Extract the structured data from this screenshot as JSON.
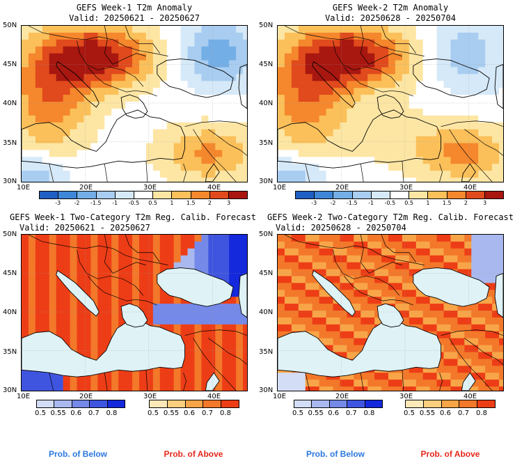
{
  "panels": [
    {
      "title": "GEFS Week-1 T2m Anomaly",
      "valid": "Valid: 20250621 - 20250627"
    },
    {
      "title": "GEFS Week-2 T2m Anomaly",
      "valid": "Valid: 20250628 - 20250704"
    },
    {
      "title": "GEFS Week-1 Two-Category T2m Reg. Calib. Forecast",
      "valid": "Valid: 20250621 - 20250627"
    },
    {
      "title": "GEFS Week-2 Two-Category T2m Reg. Calib. Forecast",
      "valid": "Valid: 20250628 - 20250704"
    }
  ],
  "lat_labels": [
    "50N",
    "45N",
    "40N",
    "35N",
    "30N"
  ],
  "lon_labels": [
    "10E",
    "20E",
    "30E",
    "40E"
  ],
  "anomaly_scale": {
    "ticks": [
      "-3",
      "-2",
      "-1.5",
      "-1",
      "-0.5",
      "0.5",
      "1",
      "1.5",
      "2",
      "3"
    ],
    "colors": [
      "#1f5fc4",
      "#3d86d8",
      "#74aee6",
      "#a8cdf0",
      "#d6e9f8",
      "#ffffff",
      "#fde6a4",
      "#fbc05a",
      "#f5872d",
      "#e04a1c",
      "#a81710"
    ]
  },
  "below_scale": {
    "ticks": [
      "0.5",
      "0.55",
      "0.6",
      "0.7",
      "0.8"
    ],
    "colors": [
      "#d3ddf6",
      "#a9b8ef",
      "#7589e8",
      "#3f55e0",
      "#1428dc"
    ],
    "label": "Prob. of Below",
    "label_color": "#2a78e0"
  },
  "above_scale": {
    "ticks": [
      "0.5",
      "0.55",
      "0.6",
      "0.7",
      "0.8"
    ],
    "colors": [
      "#fde9b8",
      "#fbcf7e",
      "#f8a548",
      "#f3782a",
      "#ed3d16"
    ],
    "label": "Prob. of Above",
    "label_color": "#e4281a"
  },
  "map_colors": {
    "sea": "#dff2f6",
    "land_coast": "#000000"
  }
}
